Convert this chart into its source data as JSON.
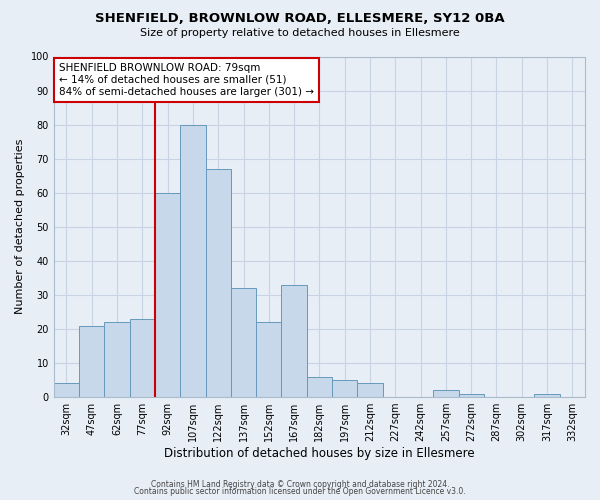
{
  "title": "SHENFIELD, BROWNLOW ROAD, ELLESMERE, SY12 0BA",
  "subtitle": "Size of property relative to detached houses in Ellesmere",
  "xlabel": "Distribution of detached houses by size in Ellesmere",
  "ylabel": "Number of detached properties",
  "bin_centers": [
    32,
    47,
    62,
    77,
    92,
    107,
    122,
    137,
    152,
    167,
    182,
    197,
    212,
    227,
    242,
    257,
    272,
    287,
    302,
    317,
    332
  ],
  "bin_labels": [
    "32sqm",
    "47sqm",
    "62sqm",
    "77sqm",
    "92sqm",
    "107sqm",
    "122sqm",
    "137sqm",
    "152sqm",
    "167sqm",
    "182sqm",
    "197sqm",
    "212sqm",
    "227sqm",
    "242sqm",
    "257sqm",
    "272sqm",
    "287sqm",
    "302sqm",
    "317sqm",
    "332sqm"
  ],
  "bar_heights": [
    4,
    21,
    22,
    23,
    60,
    80,
    67,
    32,
    22,
    33,
    6,
    5,
    4,
    0,
    0,
    2,
    1,
    0,
    0,
    1,
    0
  ],
  "bar_color": "#c8d8eb",
  "bar_edge_color": "#6699bb",
  "property_line_x": 84.5,
  "annotation_title": "SHENFIELD BROWNLOW ROAD: 79sqm",
  "annotation_line1": "← 14% of detached houses are smaller (51)",
  "annotation_line2": "84% of semi-detached houses are larger (301) →",
  "annotation_box_color": "#ffffff",
  "annotation_box_edge": "#cc0000",
  "vline_color": "#cc0000",
  "ylim": [
    0,
    100
  ],
  "yticks": [
    0,
    10,
    20,
    30,
    40,
    50,
    60,
    70,
    80,
    90,
    100
  ],
  "grid_color": "#c8d4e4",
  "background_color": "#e8eef6",
  "footer1": "Contains HM Land Registry data © Crown copyright and database right 2024.",
  "footer2": "Contains public sector information licensed under the Open Government Licence v3.0."
}
